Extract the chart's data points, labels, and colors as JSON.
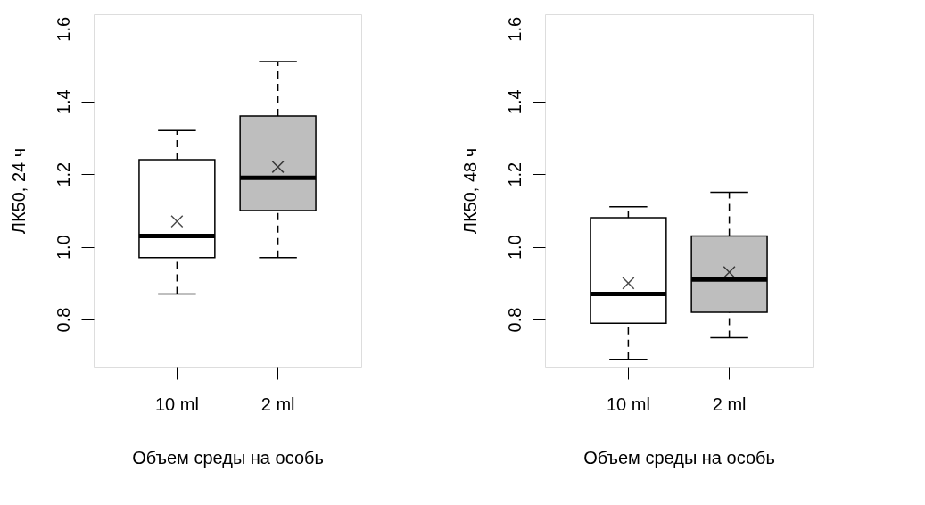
{
  "chart_data": [
    {
      "type": "box",
      "categories": [
        "10 ml",
        "2 ml"
      ],
      "xlabel": "Объем среды на особь",
      "ylabel": "ЛК50, 24 ч",
      "ylim": [
        0.67,
        1.64
      ],
      "yticks": [
        0.8,
        {
          "value": 1.0,
          "label": "1.0"
        },
        1.2,
        1.4,
        1.6
      ],
      "colors": [
        "#ffffff",
        "#bebebe"
      ],
      "marker": "cross",
      "boxes": [
        {
          "low": 0.87,
          "q1": 0.97,
          "median": 1.03,
          "q3": 1.24,
          "high": 1.32,
          "mean": 1.07
        },
        {
          "low": 0.97,
          "q1": 1.1,
          "median": 1.19,
          "q3": 1.36,
          "high": 1.51,
          "mean": 1.22
        }
      ]
    },
    {
      "type": "box",
      "categories": [
        "10 ml",
        "2 ml"
      ],
      "xlabel": "Объем среды на особь",
      "ylabel": "ЛК50, 48 ч",
      "ylim": [
        0.67,
        1.64
      ],
      "yticks": [
        0.8,
        {
          "value": 1.0,
          "label": "1.0"
        },
        1.2,
        1.4,
        1.6
      ],
      "colors": [
        "#ffffff",
        "#bebebe"
      ],
      "marker": "cross",
      "boxes": [
        {
          "low": 0.69,
          "q1": 0.79,
          "median": 0.87,
          "q3": 1.08,
          "high": 1.11,
          "mean": 0.9
        },
        {
          "low": 0.75,
          "q1": 0.82,
          "median": 0.91,
          "q3": 1.03,
          "high": 1.15,
          "mean": 0.93
        }
      ]
    }
  ]
}
